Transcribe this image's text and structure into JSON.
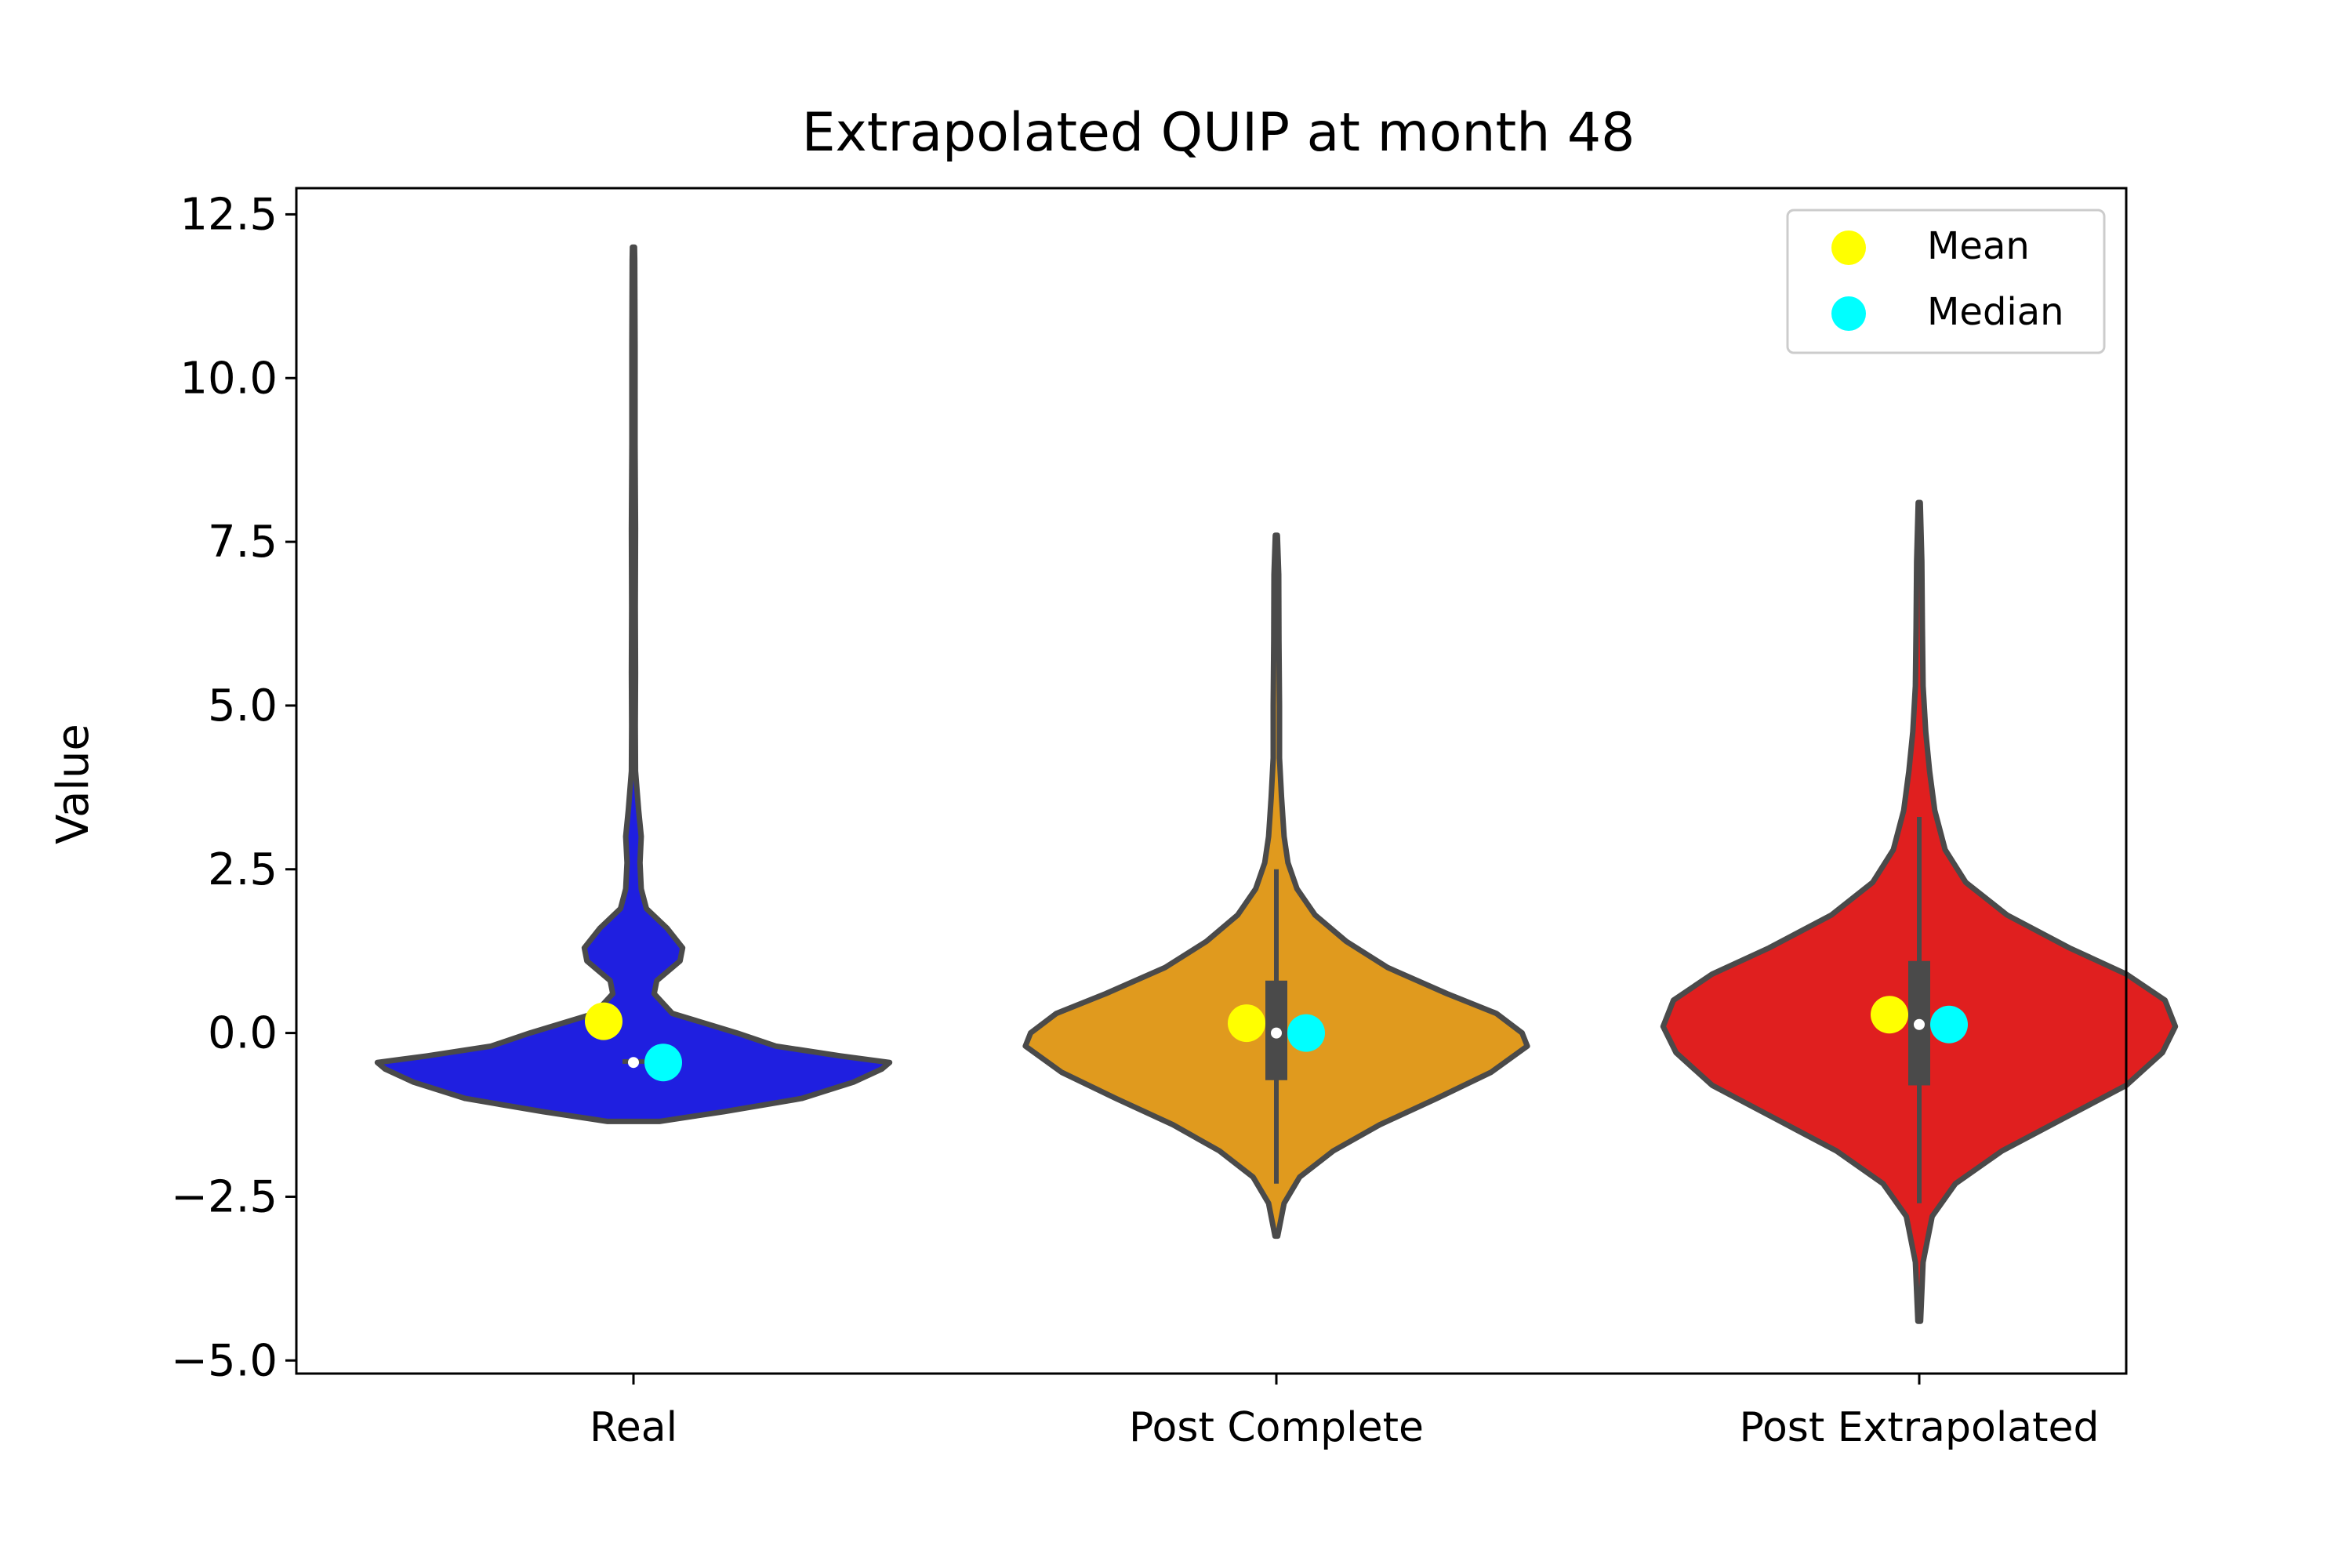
{
  "chart_data": {
    "type": "violin",
    "title": "Extrapolated QUIP at month 48",
    "xlabel": "",
    "ylabel": "Value",
    "ylim": [
      -5.2,
      12.9
    ],
    "yticks": [
      -5.0,
      -2.5,
      0.0,
      2.5,
      5.0,
      7.5,
      10.0,
      12.5
    ],
    "ytick_labels": [
      "−5.0",
      "−2.5",
      "0.0",
      "2.5",
      "5.0",
      "7.5",
      "10.0",
      "12.5"
    ],
    "categories": [
      "Real",
      "Post Complete",
      "Post Extrapolated"
    ],
    "grid": false,
    "legend_position": "top-right",
    "legend": [
      {
        "label": "Mean",
        "color": "#ffff00"
      },
      {
        "label": "Median",
        "color": "#00ffff"
      }
    ],
    "series": [
      {
        "category": "Real",
        "color": "#1f1fe0",
        "min": -1.35,
        "max": 12.0,
        "q1": -0.47,
        "q3": -0.4,
        "median_dot": -0.45,
        "mean": 0.18,
        "median": -0.45,
        "profile": [
          [
            -1.35,
            0.1
          ],
          [
            -1.2,
            0.35
          ],
          [
            -1.0,
            0.65
          ],
          [
            -0.75,
            0.85
          ],
          [
            -0.55,
            0.96
          ],
          [
            -0.45,
            0.99
          ],
          [
            -0.35,
            0.8
          ],
          [
            -0.2,
            0.55
          ],
          [
            0.0,
            0.4
          ],
          [
            0.3,
            0.15
          ],
          [
            0.6,
            0.08
          ],
          [
            0.8,
            0.09
          ],
          [
            1.1,
            0.18
          ],
          [
            1.3,
            0.19
          ],
          [
            1.6,
            0.13
          ],
          [
            1.9,
            0.05
          ],
          [
            2.2,
            0.03
          ],
          [
            2.6,
            0.025
          ],
          [
            3.0,
            0.03
          ],
          [
            3.4,
            0.02
          ],
          [
            4.0,
            0.008
          ],
          [
            4.7,
            0.007
          ],
          [
            5.5,
            0.008
          ],
          [
            6.5,
            0.007
          ],
          [
            7.7,
            0.008
          ],
          [
            9.0,
            0.006
          ],
          [
            10.5,
            0.006
          ],
          [
            11.8,
            0.005
          ],
          [
            12.0,
            0.004
          ]
        ]
      },
      {
        "category": "Post Complete",
        "color": "#e09a1e",
        "min": -3.1,
        "max": 7.6,
        "q1": -0.72,
        "q3": 0.8,
        "whisker_low": -2.3,
        "whisker_high": 2.5,
        "median_dot": 0.0,
        "mean": 0.15,
        "median": 0.0,
        "profile": [
          [
            -3.1,
            0.005
          ],
          [
            -2.6,
            0.03
          ],
          [
            -2.2,
            0.09
          ],
          [
            -1.8,
            0.22
          ],
          [
            -1.4,
            0.4
          ],
          [
            -1.0,
            0.62
          ],
          [
            -0.6,
            0.83
          ],
          [
            -0.2,
            0.97
          ],
          [
            0.0,
            0.95
          ],
          [
            0.3,
            0.85
          ],
          [
            0.6,
            0.66
          ],
          [
            1.0,
            0.43
          ],
          [
            1.4,
            0.27
          ],
          [
            1.8,
            0.15
          ],
          [
            2.2,
            0.08
          ],
          [
            2.6,
            0.045
          ],
          [
            3.0,
            0.03
          ],
          [
            3.6,
            0.02
          ],
          [
            4.2,
            0.012
          ],
          [
            5.0,
            0.012
          ],
          [
            6.0,
            0.01
          ],
          [
            7.0,
            0.009
          ],
          [
            7.6,
            0.004
          ]
        ]
      },
      {
        "category": "Post Extrapolated",
        "color": "#e01f1f",
        "min": -4.4,
        "max": 8.1,
        "q1": -0.8,
        "q3": 1.1,
        "whisker_low": -2.6,
        "whisker_high": 3.3,
        "median_dot": 0.13,
        "mean": 0.28,
        "median": 0.13,
        "profile": [
          [
            -4.4,
            0.005
          ],
          [
            -3.5,
            0.015
          ],
          [
            -2.8,
            0.05
          ],
          [
            -2.3,
            0.14
          ],
          [
            -1.8,
            0.32
          ],
          [
            -1.3,
            0.56
          ],
          [
            -0.8,
            0.8
          ],
          [
            -0.3,
            0.94
          ],
          [
            0.1,
            0.99
          ],
          [
            0.5,
            0.95
          ],
          [
            0.9,
            0.8
          ],
          [
            1.3,
            0.58
          ],
          [
            1.8,
            0.34
          ],
          [
            2.3,
            0.18
          ],
          [
            2.8,
            0.1
          ],
          [
            3.4,
            0.06
          ],
          [
            4.0,
            0.04
          ],
          [
            4.6,
            0.025
          ],
          [
            5.3,
            0.015
          ],
          [
            6.2,
            0.012
          ],
          [
            7.2,
            0.01
          ],
          [
            8.1,
            0.004
          ]
        ]
      }
    ]
  }
}
